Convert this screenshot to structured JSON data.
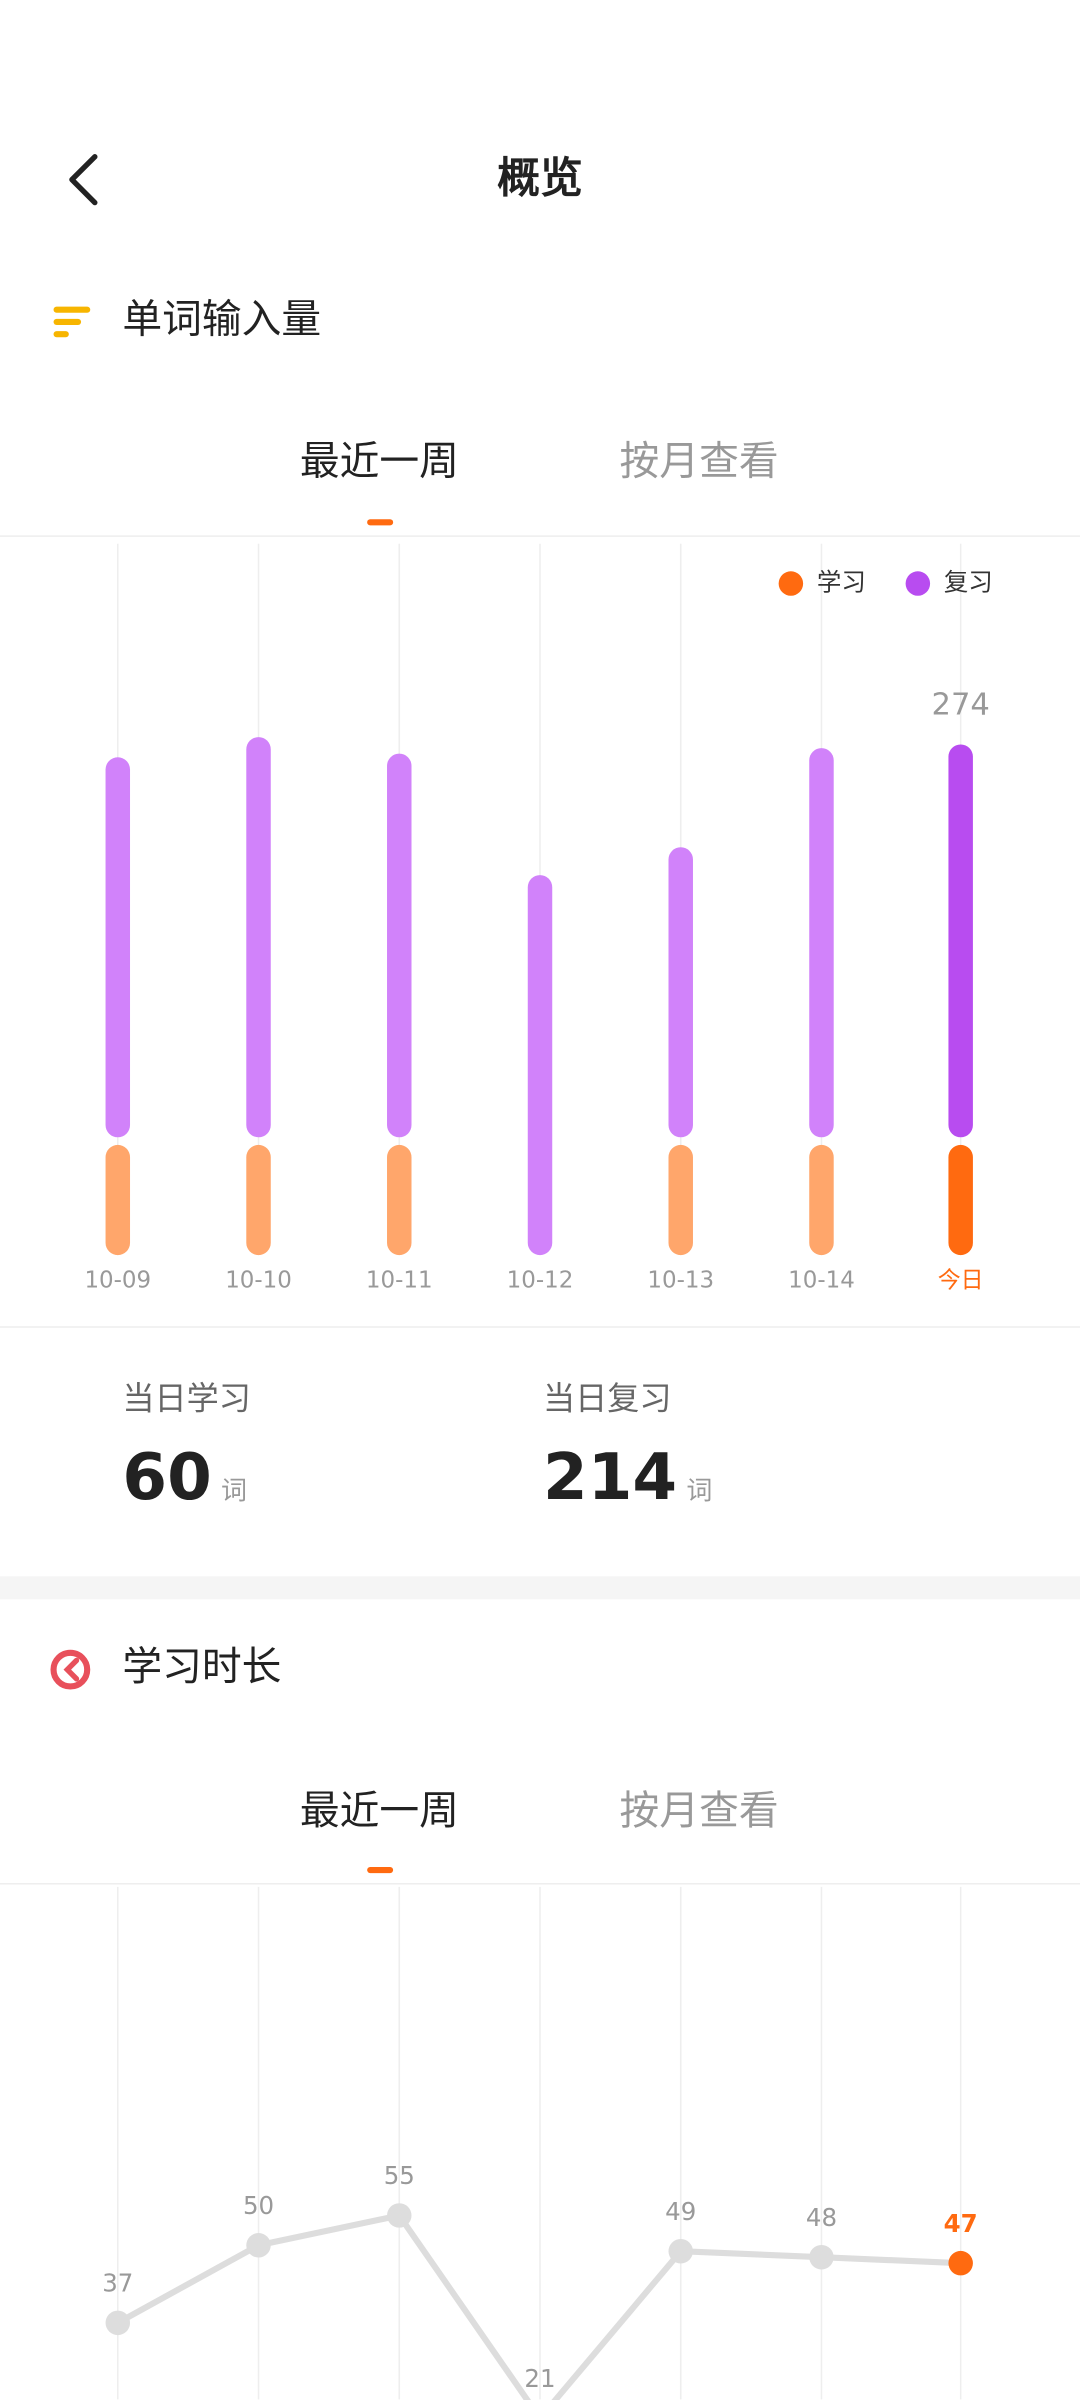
{
  "header": {
    "title": "概览"
  },
  "word_section": {
    "title": "单词输入量",
    "tabs": [
      "最近一周",
      "按月查看"
    ],
    "chart_data": {
      "type": "bar",
      "stacked": true,
      "categories": [
        "10-09",
        "10-10",
        "10-11",
        "10-12",
        "10-13",
        "10-14",
        "今日"
      ],
      "series": [
        {
          "name": "学习",
          "color": "#ff6a10",
          "past_color": "#ffa66b",
          "values": [
            60,
            60,
            60,
            0,
            60,
            60,
            60
          ]
        },
        {
          "name": "复习",
          "color": "#b84cf0",
          "past_color": "#d182fa",
          "values": [
            207,
            218,
            209,
            207,
            158,
            212,
            214
          ]
        }
      ],
      "annotation": 274,
      "grid": true,
      "legend": "top-right"
    },
    "stats": [
      {
        "label": "当日学习",
        "value": 60,
        "unit": "词"
      },
      {
        "label": "当日复习",
        "value": 214,
        "unit": "词"
      }
    ]
  },
  "time_section": {
    "title": "学习时长",
    "tabs": [
      "最近一周",
      "按月查看"
    ],
    "chart_data": {
      "type": "line",
      "values": [
        37,
        50,
        55,
        21,
        49,
        48,
        47
      ],
      "color": "#dddddd",
      "highlight_color": "#ff6a10",
      "grid": true
    }
  }
}
